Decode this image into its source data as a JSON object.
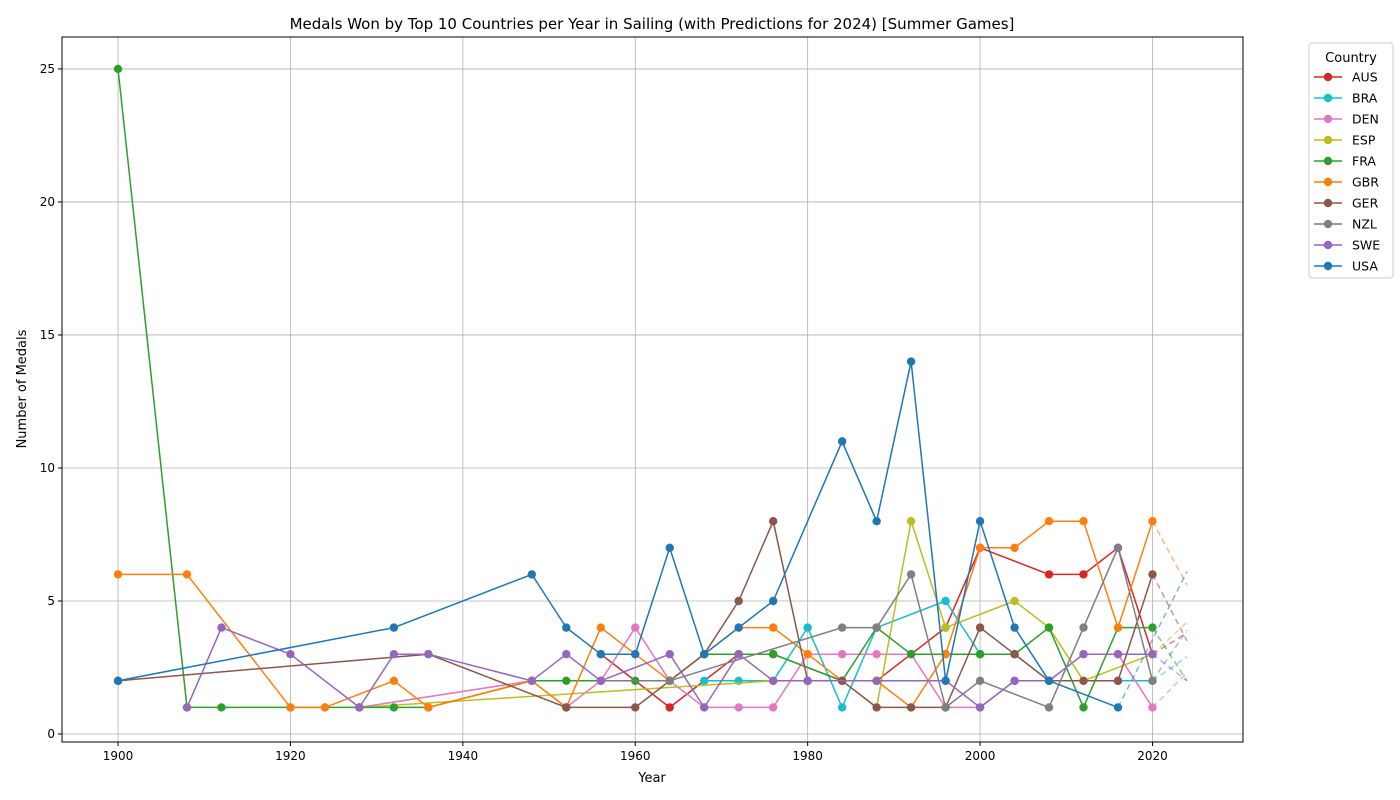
{
  "chart_data": {
    "type": "line",
    "title": "Medals Won by Top 10 Countries per Year in Sailing (with Predictions for 2024) [Summer Games]",
    "xlabel": "Year",
    "ylabel": "Number of Medals",
    "xlim": [
      1893.5,
      2030.5
    ],
    "ylim": [
      -0.3,
      26.2
    ],
    "xticks": [
      1900,
      1920,
      1940,
      1960,
      1980,
      2000,
      2020
    ],
    "yticks": [
      0,
      5,
      10,
      15,
      20,
      25
    ],
    "grid": true,
    "legend": {
      "title": "Country",
      "placement": "outside-right"
    },
    "prediction_year": 2024,
    "series": [
      {
        "name": "AUS",
        "color": "#d62728",
        "points": [
          [
            1956,
            3
          ],
          [
            1964,
            1
          ],
          [
            1972,
            3
          ],
          [
            1976,
            3
          ],
          [
            1984,
            2
          ],
          [
            1988,
            2
          ],
          [
            1992,
            3
          ],
          [
            1996,
            4
          ],
          [
            2000,
            7
          ],
          [
            2008,
            6
          ],
          [
            2012,
            6
          ],
          [
            2016,
            7
          ],
          [
            2020,
            3
          ]
        ],
        "prediction": 3.8
      },
      {
        "name": "BRA",
        "color": "#17becf",
        "points": [
          [
            1968,
            2
          ],
          [
            1972,
            2
          ],
          [
            1976,
            2
          ],
          [
            1980,
            4
          ],
          [
            1984,
            1
          ],
          [
            1988,
            4
          ],
          [
            1996,
            5
          ],
          [
            2000,
            3
          ],
          [
            2004,
            3
          ],
          [
            2008,
            2
          ],
          [
            2016,
            2
          ],
          [
            2020,
            2
          ]
        ],
        "prediction": 2.9
      },
      {
        "name": "DEN",
        "color": "#e377c2",
        "points": [
          [
            1928,
            1
          ],
          [
            1948,
            2
          ],
          [
            1952,
            1
          ],
          [
            1956,
            2
          ],
          [
            1960,
            4
          ],
          [
            1964,
            2
          ],
          [
            1968,
            1
          ],
          [
            1972,
            1
          ],
          [
            1976,
            1
          ],
          [
            1980,
            3
          ],
          [
            1984,
            3
          ],
          [
            1988,
            3
          ],
          [
            1992,
            3
          ],
          [
            1996,
            1
          ],
          [
            2000,
            1
          ],
          [
            2004,
            2
          ],
          [
            2008,
            2
          ],
          [
            2012,
            3
          ],
          [
            2016,
            3
          ],
          [
            2020,
            1
          ]
        ],
        "prediction": 2.3
      },
      {
        "name": "ESP",
        "color": "#bcbd22",
        "points": [
          [
            1928,
            1
          ],
          [
            1976,
            2
          ],
          [
            1980,
            2
          ],
          [
            1984,
            2
          ],
          [
            1988,
            1
          ],
          [
            1992,
            8
          ],
          [
            1996,
            4
          ],
          [
            2004,
            5
          ],
          [
            2008,
            4
          ],
          [
            2012,
            2
          ],
          [
            2020,
            3
          ]
        ],
        "prediction": 4.2
      },
      {
        "name": "FRA",
        "color": "#2ca02c",
        "points": [
          [
            1900,
            25
          ],
          [
            1908,
            1
          ],
          [
            1912,
            1
          ],
          [
            1920,
            1
          ],
          [
            1924,
            1
          ],
          [
            1928,
            1
          ],
          [
            1932,
            1
          ],
          [
            1936,
            1
          ],
          [
            1948,
            2
          ],
          [
            1952,
            2
          ],
          [
            1956,
            2
          ],
          [
            1960,
            2
          ],
          [
            1964,
            2
          ],
          [
            1968,
            3
          ],
          [
            1972,
            3
          ],
          [
            1976,
            3
          ],
          [
            1984,
            2
          ],
          [
            1988,
            4
          ],
          [
            1992,
            3
          ],
          [
            1996,
            3
          ],
          [
            2000,
            3
          ],
          [
            2004,
            3
          ],
          [
            2008,
            4
          ],
          [
            2012,
            1
          ],
          [
            2016,
            4
          ],
          [
            2020,
            4
          ]
        ],
        "prediction": 2.0
      },
      {
        "name": "GBR",
        "color": "#ff7f0e",
        "points": [
          [
            1900,
            6
          ],
          [
            1908,
            6
          ],
          [
            1920,
            1
          ],
          [
            1924,
            1
          ],
          [
            1932,
            2
          ],
          [
            1936,
            1
          ],
          [
            1948,
            2
          ],
          [
            1952,
            1
          ],
          [
            1956,
            4
          ],
          [
            1960,
            3
          ],
          [
            1964,
            2
          ],
          [
            1968,
            3
          ],
          [
            1972,
            4
          ],
          [
            1976,
            4
          ],
          [
            1980,
            3
          ],
          [
            1984,
            2
          ],
          [
            1988,
            2
          ],
          [
            1992,
            1
          ],
          [
            1996,
            3
          ],
          [
            2000,
            7
          ],
          [
            2004,
            7
          ],
          [
            2008,
            8
          ],
          [
            2012,
            8
          ],
          [
            2016,
            4
          ],
          [
            2020,
            8
          ]
        ],
        "prediction": 5.6
      },
      {
        "name": "GER",
        "color": "#8c564b",
        "points": [
          [
            1900,
            2
          ],
          [
            1936,
            3
          ],
          [
            1952,
            1
          ],
          [
            1960,
            1
          ],
          [
            1964,
            2
          ],
          [
            1968,
            3
          ],
          [
            1972,
            5
          ],
          [
            1976,
            8
          ],
          [
            1980,
            2
          ],
          [
            1984,
            2
          ],
          [
            1988,
            1
          ],
          [
            1992,
            1
          ],
          [
            1996,
            1
          ],
          [
            2000,
            4
          ],
          [
            2004,
            3
          ],
          [
            2008,
            2
          ],
          [
            2012,
            2
          ],
          [
            2016,
            2
          ],
          [
            2020,
            6
          ]
        ],
        "prediction": 3.5
      },
      {
        "name": "NZL",
        "color": "#7f7f7f",
        "points": [
          [
            1956,
            2
          ],
          [
            1964,
            2
          ],
          [
            1984,
            4
          ],
          [
            1988,
            4
          ],
          [
            1992,
            6
          ],
          [
            1996,
            1
          ],
          [
            2000,
            2
          ],
          [
            2008,
            1
          ],
          [
            2012,
            4
          ],
          [
            2016,
            7
          ],
          [
            2020,
            2
          ]
        ],
        "prediction": 3.9
      },
      {
        "name": "SWE",
        "color": "#9467bd",
        "points": [
          [
            1908,
            1
          ],
          [
            1912,
            4
          ],
          [
            1920,
            3
          ],
          [
            1928,
            1
          ],
          [
            1932,
            3
          ],
          [
            1936,
            3
          ],
          [
            1948,
            2
          ],
          [
            1952,
            3
          ],
          [
            1956,
            2
          ],
          [
            1964,
            3
          ],
          [
            1968,
            1
          ],
          [
            1972,
            3
          ],
          [
            1976,
            2
          ],
          [
            1980,
            2
          ],
          [
            1988,
            2
          ],
          [
            1996,
            2
          ],
          [
            2000,
            1
          ],
          [
            2004,
            2
          ],
          [
            2008,
            2
          ],
          [
            2012,
            3
          ],
          [
            2016,
            3
          ],
          [
            2020,
            3
          ]
        ],
        "prediction": 2.0
      },
      {
        "name": "USA",
        "color": "#1f77b4",
        "points": [
          [
            1900,
            2
          ],
          [
            1932,
            4
          ],
          [
            1948,
            6
          ],
          [
            1952,
            4
          ],
          [
            1956,
            3
          ],
          [
            1960,
            3
          ],
          [
            1964,
            7
          ],
          [
            1968,
            3
          ],
          [
            1972,
            4
          ],
          [
            1976,
            5
          ],
          [
            1984,
            11
          ],
          [
            1988,
            8
          ],
          [
            1992,
            14
          ],
          [
            1996,
            2
          ],
          [
            2000,
            8
          ],
          [
            2004,
            4
          ],
          [
            2008,
            2
          ],
          [
            2016,
            1
          ]
        ],
        "prediction": 6.1
      }
    ]
  }
}
